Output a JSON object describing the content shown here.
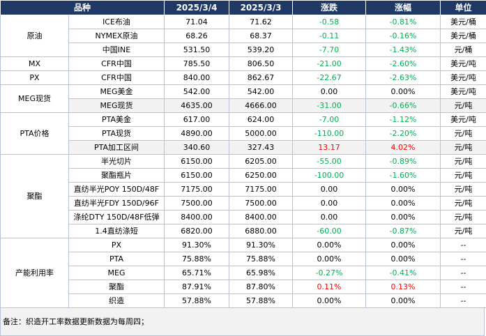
{
  "headers": [
    "品种",
    "2025/3/4",
    "2025/3/3",
    "涨跌",
    "涨幅",
    "单位"
  ],
  "groups": [
    {
      "label": "原油",
      "rows": [
        {
          "name": "ICE布油",
          "v1": "71.04",
          "v2": "71.62",
          "chg": "-0.58",
          "pct": "-0.81%",
          "unit": "美元/桶"
        },
        {
          "name": "NYMEX原油",
          "v1": "68.26",
          "v2": "68.37",
          "chg": "-0.11",
          "pct": "-0.16%",
          "unit": "美元/桶"
        },
        {
          "name": "中国INE",
          "v1": "531.50",
          "v2": "539.20",
          "chg": "-7.70",
          "pct": "-1.43%",
          "unit": "元/桶"
        }
      ]
    },
    {
      "label": "MX",
      "rows": [
        {
          "name": "CFR中国",
          "v1": "785.50",
          "v2": "806.50",
          "chg": "-21.00",
          "pct": "-2.60%",
          "unit": "美元/吨"
        }
      ]
    },
    {
      "label": "PX",
      "rows": [
        {
          "name": "CFR中国",
          "v1": "840.00",
          "v2": "862.67",
          "chg": "-22.67",
          "pct": "-2.63%",
          "unit": "美元/吨"
        }
      ]
    },
    {
      "label": "MEG现货",
      "rows": [
        {
          "name": "MEG美金",
          "v1": "542.00",
          "v2": "542.00",
          "chg": "0.00",
          "pct": "0.00%",
          "unit": "美元/吨"
        },
        {
          "name": "MEG现货",
          "v1": "4635.00",
          "v2": "4666.00",
          "chg": "-31.00",
          "pct": "-0.66%",
          "unit": "元/吨"
        }
      ]
    },
    {
      "label": "PTA价格",
      "rows": [
        {
          "name": "PTA美金",
          "v1": "617.00",
          "v2": "624.00",
          "chg": "-7.00",
          "pct": "-1.12%",
          "unit": "美元/吨"
        },
        {
          "name": "PTA现货",
          "v1": "4890.00",
          "v2": "5000.00",
          "chg": "-110.00",
          "pct": "-2.20%",
          "unit": "元/吨"
        },
        {
          "name": "PTA加工区间",
          "v1": "340.60",
          "v2": "327.43",
          "chg": "13.17",
          "pct": "4.02%",
          "unit": "元/吨"
        }
      ]
    },
    {
      "label": "聚酯",
      "rows": [
        {
          "name": "半光切片",
          "v1": "6150.00",
          "v2": "6205.00",
          "chg": "-55.00",
          "pct": "-0.89%",
          "unit": "元/吨"
        },
        {
          "name": "聚酯瓶片",
          "v1": "6150.00",
          "v2": "6250.00",
          "chg": "-100.00",
          "pct": "-1.60%",
          "unit": "元/吨"
        },
        {
          "name": "直纺半光POY 150D/48F",
          "v1": "7175.00",
          "v2": "7175.00",
          "chg": "0.00",
          "pct": "0.00%",
          "unit": "元/吨"
        },
        {
          "name": "直纺半光FDY 150D/96F",
          "v1": "7500.00",
          "v2": "7500.00",
          "chg": "0.00",
          "pct": "0.00%",
          "unit": "元/吨"
        },
        {
          "name": "涤纶DTY 150D/48F低弹",
          "v1": "8400.00",
          "v2": "8400.00",
          "chg": "0.00",
          "pct": "0.00%",
          "unit": "元/吨"
        },
        {
          "name": "1.4直纺涤短",
          "v1": "6820.00",
          "v2": "6880.00",
          "chg": "-60.00",
          "pct": "-0.87%",
          "unit": "元/吨"
        }
      ]
    },
    {
      "label": "产能利用率",
      "rows": [
        {
          "name": "PX",
          "v1": "91.30%",
          "v2": "91.30%",
          "chg": "0.00%",
          "pct": "0.00%",
          "unit": "--"
        },
        {
          "name": "PTA",
          "v1": "75.88%",
          "v2": "75.88%",
          "chg": "0.00%",
          "pct": "0.00%",
          "unit": "--"
        },
        {
          "name": "MEG",
          "v1": "65.71%",
          "v2": "65.98%",
          "chg": "-0.27%",
          "pct": "-0.41%",
          "unit": "--"
        },
        {
          "name": "聚酯",
          "v1": "87.91%",
          "v2": "87.80%",
          "chg": "0.11%",
          "pct": "0.13%",
          "unit": "--"
        },
        {
          "name": "织造",
          "v1": "57.88%",
          "v2": "57.88%",
          "chg": "0.00%",
          "pct": "0.00%",
          "unit": "--"
        }
      ]
    }
  ],
  "note": "备注：织造开工率数据更新数据为每周四；"
}
